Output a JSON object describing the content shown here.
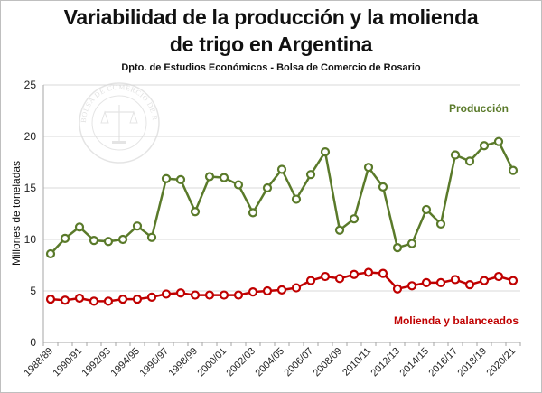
{
  "chart_data": {
    "type": "line",
    "title_line1": "Variabilidad de la producción y la molienda",
    "title_line2": "de trigo en Argentina",
    "subtitle": "Dpto. de Estudios Económicos - Bolsa de Comercio de Rosario",
    "watermark": "BOLSA DE COMERCIO DE ROSARIO",
    "ylabel": "Millones de toneladas",
    "ylim": [
      0,
      25
    ],
    "yticks": [
      0,
      5,
      10,
      15,
      20,
      25
    ],
    "grid": true,
    "xtick_labels": [
      "1988/89",
      "1990/91",
      "1992/93",
      "1994/95",
      "1996/97",
      "1998/99",
      "2000/01",
      "2002/03",
      "2004/05",
      "2006/07",
      "2008/09",
      "2010/11",
      "2012/13",
      "2014/15",
      "2016/17",
      "2018/19",
      "2020/21"
    ],
    "categories": [
      "1988/89",
      "1989/90",
      "1990/91",
      "1991/92",
      "1992/93",
      "1993/94",
      "1994/95",
      "1995/96",
      "1996/97",
      "1997/98",
      "1998/99",
      "1999/00",
      "2000/01",
      "2001/02",
      "2002/03",
      "2003/04",
      "2004/05",
      "2005/06",
      "2006/07",
      "2007/08",
      "2008/09",
      "2009/10",
      "2010/11",
      "2011/12",
      "2012/13",
      "2013/14",
      "2014/15",
      "2015/16",
      "2016/17",
      "2017/18",
      "2018/19",
      "2019/20",
      "2020/21"
    ],
    "series": [
      {
        "name": "Producción",
        "color": "#5a7a2a",
        "values": [
          8.6,
          10.1,
          11.2,
          9.9,
          9.8,
          10.0,
          11.3,
          10.2,
          15.9,
          15.8,
          12.7,
          16.1,
          16.0,
          15.3,
          12.6,
          15.0,
          16.8,
          13.9,
          16.3,
          18.5,
          10.9,
          12.0,
          17.0,
          15.1,
          9.2,
          9.6,
          12.9,
          11.5,
          18.2,
          17.6,
          19.1,
          19.5,
          16.7
        ]
      },
      {
        "name": "Molienda  y balanceados",
        "color": "#c00000",
        "values": [
          4.2,
          4.1,
          4.3,
          4.0,
          4.0,
          4.2,
          4.2,
          4.4,
          4.7,
          4.8,
          4.6,
          4.6,
          4.6,
          4.6,
          4.9,
          5.0,
          5.1,
          5.3,
          6.0,
          6.4,
          6.2,
          6.6,
          6.8,
          6.7,
          5.2,
          5.5,
          5.8,
          5.8,
          6.1,
          5.6,
          6.0,
          6.4,
          6.0
        ]
      }
    ]
  }
}
